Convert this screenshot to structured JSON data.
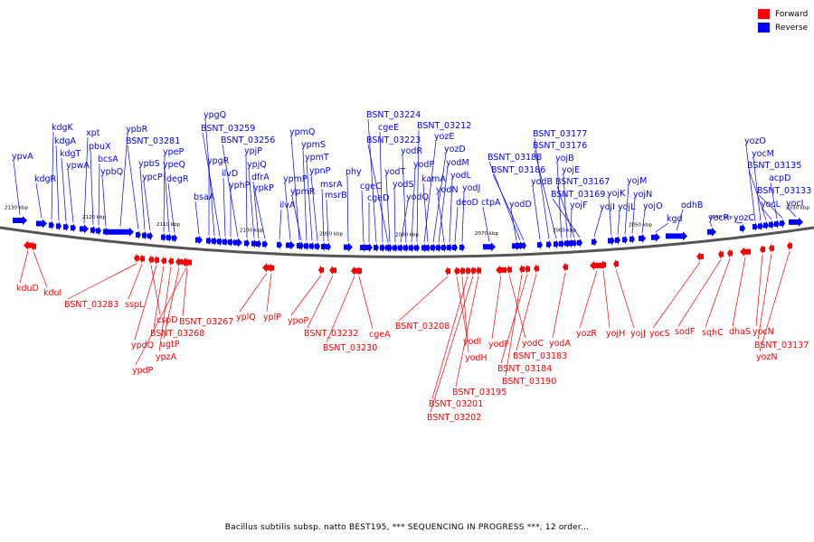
{
  "legend": [
    {
      "label": "Forward",
      "color": "#ff0000"
    },
    {
      "label": "Reverse",
      "color": "#0000ff"
    }
  ],
  "caption": "Bacillus subtilis subsp. natto BEST195, *** SEQUENCING IN PROGRESS ***, 12 order...",
  "ruler_ticks": [
    "2130 kbp",
    "2120 kbp",
    "2110 kbp",
    "2100 kbp",
    "2090 kbp",
    "2080 kbp",
    "2070 kbp",
    "2060 kbp",
    "2050 kbp",
    "2040 kbp",
    "2030 kbp"
  ],
  "reverse_genes": [
    "ypvA",
    "kdgR",
    "kdgK",
    "kdgA",
    "kdgT",
    "ypwA",
    "xpt",
    "pbuX",
    "bcsA",
    "ypbQ",
    "ypbR",
    "BSNT_03281",
    "ypbS",
    "ypcP",
    "ypeP",
    "ypeQ",
    "degR",
    "bsaA",
    "ypgR",
    "ypgQ",
    "BSNT_03259",
    "ilvD",
    "yphP",
    "BSNT_03256",
    "ypjP",
    "ypjQ",
    "dfrA",
    "ypkP",
    "ilvA",
    "ypmP",
    "ypmQ",
    "ypmR",
    "ypmS",
    "ypmT",
    "ypnP",
    "msrA",
    "msrB",
    "phy",
    "cgeC",
    "cgeD",
    "BSNT_03224",
    "cgeE",
    "BSNT_03223",
    "yodT",
    "yodS",
    "yodQ",
    "yodR",
    "yodP",
    "BSNT_03212",
    "yozE",
    "kamA",
    "yozD",
    "yodM",
    "yodN",
    "yodL",
    "deoD",
    "yodJ",
    "ctpA",
    "yodD",
    "BSNT_03188",
    "BSNT_03186",
    "yodB",
    "BSNT_03177",
    "BSNT_03176",
    "yojB",
    "yojE",
    "yojF",
    "BSNT_03167",
    "BSNT_03169",
    "yojI",
    "yojK",
    "yojL",
    "yojM",
    "yojN",
    "yojO",
    "kgd",
    "odhB",
    "yocR",
    "yozC",
    "yozO",
    "yocM",
    "BSNT_03135",
    "yocL",
    "acpD",
    "BSNT_03133",
    "yocI"
  ],
  "forward_genes": [
    "kduD",
    "kduI",
    "BSNT_03283",
    "sspL",
    "cspD",
    "ypdQ",
    "BSNT_03268",
    "ypzA",
    "ugtP",
    "ypdP",
    "BSNT_03267",
    "yplQ",
    "yplP",
    "ypoP",
    "BSNT_03232",
    "BSNT_03230",
    "cgeA",
    "BSNT_03208",
    "yodI",
    "yodH",
    "BSNT_03201",
    "BSNT_03202",
    "BSNT_03195",
    "yodF",
    "yodC",
    "BSNT_03190",
    "BSNT_03184",
    "BSNT_03183",
    "yodA",
    "yozR",
    "yojH",
    "yojJ",
    "yocS",
    "sodF",
    "sqhC",
    "dhaS",
    "yocN",
    "BSNT_03137",
    "yozN"
  ]
}
